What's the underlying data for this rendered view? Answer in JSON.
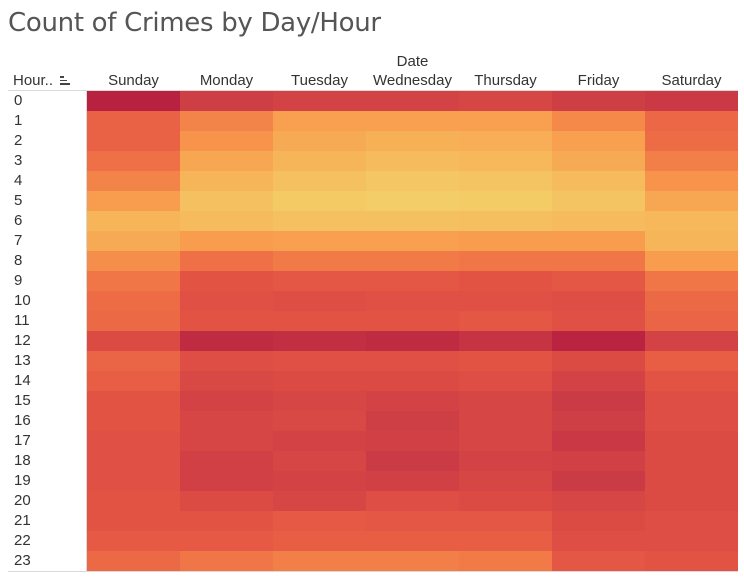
{
  "title": "Count of Crimes by Day/Hour",
  "column_group_label": "Date",
  "row_header_label": "Hour..",
  "sort_icon": "sort-descending-icon",
  "chart_data": {
    "type": "heatmap",
    "title": "Count of Crimes by Day/Hour",
    "column_field": "Date",
    "row_field": "Hour..",
    "columns": [
      "Sunday",
      "Monday",
      "Tuesday",
      "Wednesday",
      "Thursday",
      "Friday",
      "Saturday"
    ],
    "rows": [
      "0",
      "1",
      "2",
      "3",
      "4",
      "5",
      "6",
      "7",
      "8",
      "9",
      "10",
      "11",
      "12",
      "13",
      "14",
      "15",
      "16",
      "17",
      "18",
      "19",
      "20",
      "21",
      "22",
      "23"
    ],
    "color_scale": [
      "#f3d069",
      "#f6b75a",
      "#f89a4c",
      "#ef7046",
      "#e25244",
      "#cc3c45",
      "#b8213f"
    ],
    "intensity": [
      [
        1.0,
        0.82,
        0.78,
        0.78,
        0.76,
        0.82,
        0.85
      ],
      [
        0.58,
        0.42,
        0.3,
        0.3,
        0.3,
        0.4,
        0.55
      ],
      [
        0.58,
        0.36,
        0.24,
        0.2,
        0.22,
        0.3,
        0.52
      ],
      [
        0.5,
        0.26,
        0.18,
        0.14,
        0.16,
        0.24,
        0.44
      ],
      [
        0.42,
        0.18,
        0.1,
        0.06,
        0.08,
        0.14,
        0.36
      ],
      [
        0.32,
        0.1,
        0.04,
        0.02,
        0.03,
        0.08,
        0.26
      ],
      [
        0.18,
        0.14,
        0.1,
        0.1,
        0.12,
        0.14,
        0.16
      ],
      [
        0.24,
        0.32,
        0.3,
        0.3,
        0.32,
        0.32,
        0.18
      ],
      [
        0.38,
        0.5,
        0.46,
        0.46,
        0.48,
        0.48,
        0.32
      ],
      [
        0.48,
        0.66,
        0.64,
        0.64,
        0.66,
        0.64,
        0.48
      ],
      [
        0.52,
        0.68,
        0.7,
        0.68,
        0.68,
        0.7,
        0.54
      ],
      [
        0.54,
        0.66,
        0.66,
        0.66,
        0.64,
        0.68,
        0.56
      ],
      [
        0.72,
        0.94,
        0.92,
        0.94,
        0.88,
        0.98,
        0.78
      ],
      [
        0.56,
        0.7,
        0.68,
        0.68,
        0.66,
        0.72,
        0.6
      ],
      [
        0.6,
        0.74,
        0.72,
        0.72,
        0.7,
        0.78,
        0.66
      ],
      [
        0.66,
        0.78,
        0.76,
        0.78,
        0.76,
        0.84,
        0.7
      ],
      [
        0.66,
        0.76,
        0.74,
        0.82,
        0.76,
        0.82,
        0.7
      ],
      [
        0.68,
        0.76,
        0.78,
        0.8,
        0.76,
        0.86,
        0.72
      ],
      [
        0.68,
        0.8,
        0.76,
        0.84,
        0.78,
        0.8,
        0.72
      ],
      [
        0.68,
        0.8,
        0.78,
        0.8,
        0.76,
        0.84,
        0.72
      ],
      [
        0.66,
        0.72,
        0.76,
        0.7,
        0.72,
        0.76,
        0.72
      ],
      [
        0.66,
        0.66,
        0.62,
        0.64,
        0.64,
        0.72,
        0.7
      ],
      [
        0.62,
        0.62,
        0.6,
        0.6,
        0.6,
        0.7,
        0.7
      ],
      [
        0.54,
        0.48,
        0.44,
        0.44,
        0.46,
        0.64,
        0.66
      ]
    ]
  }
}
